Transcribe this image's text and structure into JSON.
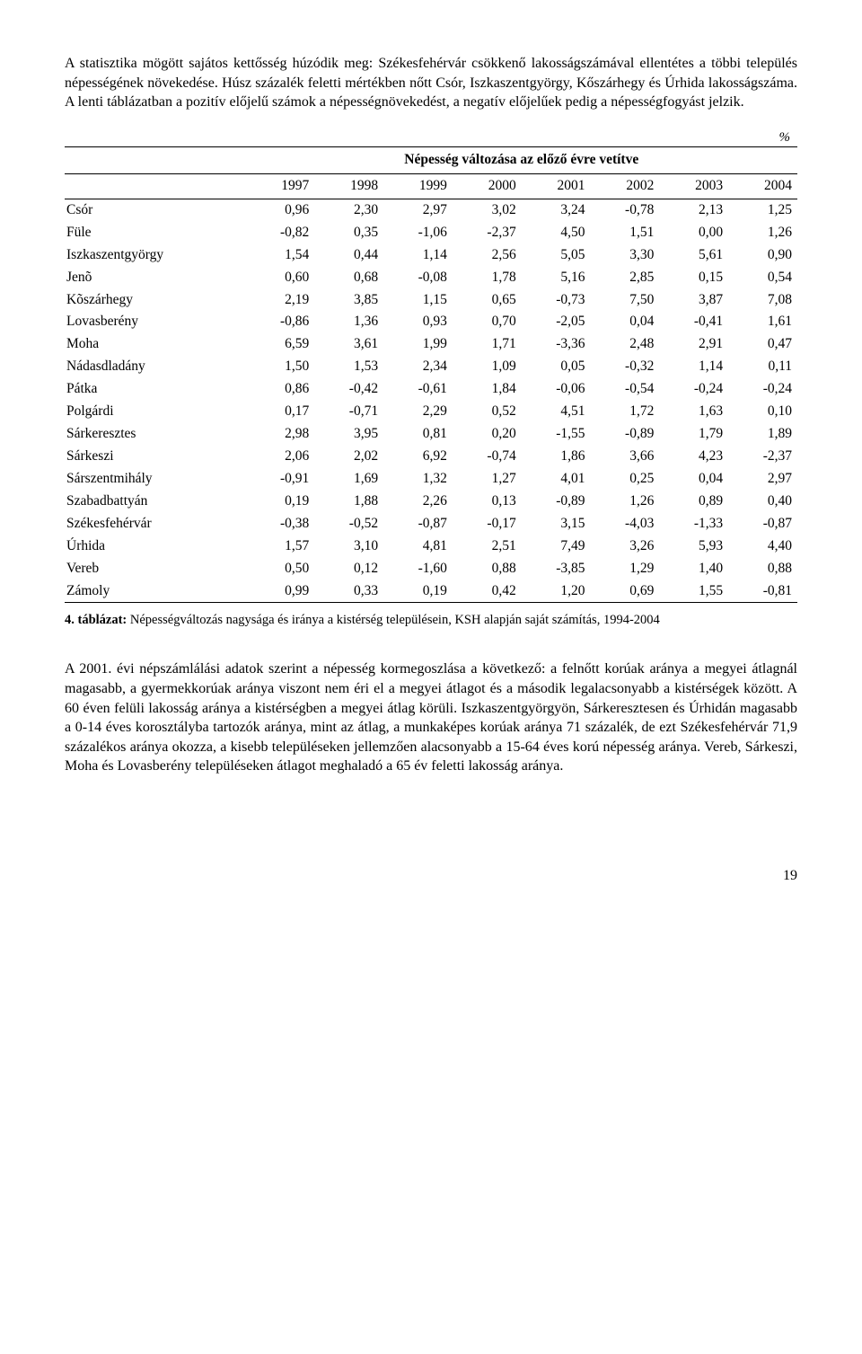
{
  "para1": "A statisztika mögött sajátos kettősség húzódik meg: Székesfehérvár csökkenő lakosságszámával ellentétes a többi település népességének növekedése. Húsz százalék feletti mértékben nőtt Csór, Iszkaszentgyörgy, Kőszárhegy és Úrhida lakosságszáma. A lenti táblázatban a pozitív előjelű számok a népességnövekedést, a negatív előjelűek pedig a népességfogyást jelzik.",
  "percent": "%",
  "table": {
    "title": "Népesség változása az előző évre vetítve",
    "years": [
      "1997",
      "1998",
      "1999",
      "2000",
      "2001",
      "2002",
      "2003",
      "2004"
    ],
    "rows": [
      {
        "label": "Csór",
        "v": [
          "0,96",
          "2,30",
          "2,97",
          "3,02",
          "3,24",
          "-0,78",
          "2,13",
          "1,25"
        ]
      },
      {
        "label": "Füle",
        "v": [
          "-0,82",
          "0,35",
          "-1,06",
          "-2,37",
          "4,50",
          "1,51",
          "0,00",
          "1,26"
        ]
      },
      {
        "label": "Iszkaszentgyörgy",
        "v": [
          "1,54",
          "0,44",
          "1,14",
          "2,56",
          "5,05",
          "3,30",
          "5,61",
          "0,90"
        ]
      },
      {
        "label": "Jenõ",
        "v": [
          "0,60",
          "0,68",
          "-0,08",
          "1,78",
          "5,16",
          "2,85",
          "0,15",
          "0,54"
        ]
      },
      {
        "label": "Kõszárhegy",
        "v": [
          "2,19",
          "3,85",
          "1,15",
          "0,65",
          "-0,73",
          "7,50",
          "3,87",
          "7,08"
        ]
      },
      {
        "label": "Lovasberény",
        "v": [
          "-0,86",
          "1,36",
          "0,93",
          "0,70",
          "-2,05",
          "0,04",
          "-0,41",
          "1,61"
        ]
      },
      {
        "label": "Moha",
        "v": [
          "6,59",
          "3,61",
          "1,99",
          "1,71",
          "-3,36",
          "2,48",
          "2,91",
          "0,47"
        ]
      },
      {
        "label": "Nádasdladány",
        "v": [
          "1,50",
          "1,53",
          "2,34",
          "1,09",
          "0,05",
          "-0,32",
          "1,14",
          "0,11"
        ]
      },
      {
        "label": "Pátka",
        "v": [
          "0,86",
          "-0,42",
          "-0,61",
          "1,84",
          "-0,06",
          "-0,54",
          "-0,24",
          "-0,24"
        ]
      },
      {
        "label": "Polgárdi",
        "v": [
          "0,17",
          "-0,71",
          "2,29",
          "0,52",
          "4,51",
          "1,72",
          "1,63",
          "0,10"
        ]
      },
      {
        "label": "Sárkeresztes",
        "v": [
          "2,98",
          "3,95",
          "0,81",
          "0,20",
          "-1,55",
          "-0,89",
          "1,79",
          "1,89"
        ]
      },
      {
        "label": "Sárkeszi",
        "v": [
          "2,06",
          "2,02",
          "6,92",
          "-0,74",
          "1,86",
          "3,66",
          "4,23",
          "-2,37"
        ]
      },
      {
        "label": "Sárszentmihály",
        "v": [
          "-0,91",
          "1,69",
          "1,32",
          "1,27",
          "4,01",
          "0,25",
          "0,04",
          "2,97"
        ]
      },
      {
        "label": "Szabadbattyán",
        "v": [
          "0,19",
          "1,88",
          "2,26",
          "0,13",
          "-0,89",
          "1,26",
          "0,89",
          "0,40"
        ]
      },
      {
        "label": "Székesfehérvár",
        "v": [
          "-0,38",
          "-0,52",
          "-0,87",
          "-0,17",
          "3,15",
          "-4,03",
          "-1,33",
          "-0,87"
        ]
      },
      {
        "label": "Úrhida",
        "v": [
          "1,57",
          "3,10",
          "4,81",
          "2,51",
          "7,49",
          "3,26",
          "5,93",
          "4,40"
        ]
      },
      {
        "label": "Vereb",
        "v": [
          "0,50",
          "0,12",
          "-1,60",
          "0,88",
          "-3,85",
          "1,29",
          "1,40",
          "0,88"
        ]
      },
      {
        "label": "Zámoly",
        "v": [
          "0,99",
          "0,33",
          "0,19",
          "0,42",
          "1,20",
          "0,69",
          "1,55",
          "-0,81"
        ]
      }
    ]
  },
  "caption_bold": "4. táblázat:",
  "caption_rest": " Népességváltozás nagysága és iránya a kistérség településein, KSH alapján saját számítás, 1994-2004",
  "para2": "A 2001. évi népszámlálási adatok szerint a népesség kormegoszlása a következő: a felnőtt korúak aránya a megyei átlagnál magasabb, a gyermekkorúak aránya viszont nem éri el a megyei átlagot és a második legalacsonyabb a kistérségek között. A 60 éven felüli lakosság aránya a kistérségben a megyei átlag körüli. Iszkaszentgyörgyön, Sárkeresztesen és Úrhidán magasabb a 0-14 éves korosztályba tartozók aránya, mint az átlag, a munkaképes korúak aránya 71 százalék, de ezt Székesfehérvár 71,9 százalékos aránya okozza, a kisebb településeken jellemzően alacsonyabb a 15-64 éves korú népesség aránya. Vereb, Sárkeszi, Moha és Lovasberény településeken átlagot meghaladó a 65 év feletti lakosság aránya.",
  "pagenum": "19"
}
